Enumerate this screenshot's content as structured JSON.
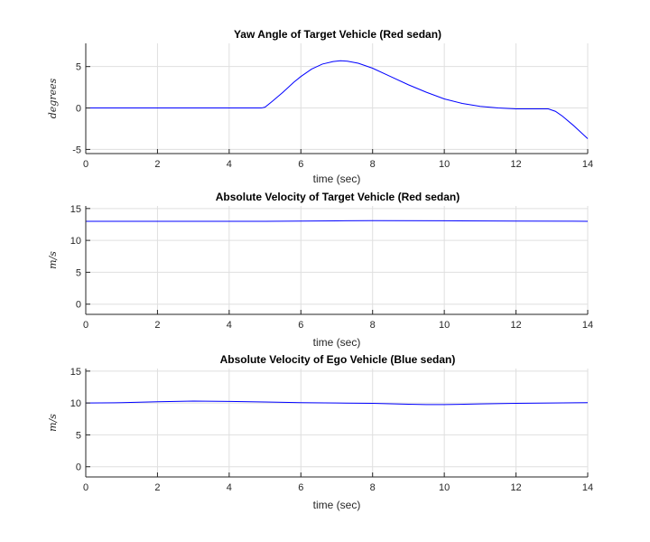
{
  "chart_data": [
    {
      "type": "line",
      "title": "Yaw Angle of Target Vehicle (Red sedan)",
      "xlabel": "time (sec)",
      "ylabel": "degrees",
      "xlim": [
        0,
        14
      ],
      "ylim": [
        -5.5,
        7.8
      ],
      "xticks": [
        0,
        2,
        4,
        6,
        8,
        10,
        12,
        14
      ],
      "yticks": [
        -5,
        0,
        5
      ],
      "grid": true,
      "line_color": "#0000ff",
      "series": [
        {
          "x": [
            0,
            4.5,
            4.9,
            5.0,
            5.2,
            5.5,
            5.8,
            6.0,
            6.3,
            6.6,
            6.9,
            7.1,
            7.3,
            7.6,
            8.0,
            8.5,
            9.0,
            9.5,
            10.0,
            10.5,
            11.0,
            11.5,
            12.0,
            12.5,
            12.9,
            13.1,
            13.3,
            13.6,
            14.0
          ],
          "y": [
            0,
            0,
            0,
            0.1,
            0.8,
            1.9,
            3.1,
            3.8,
            4.7,
            5.3,
            5.6,
            5.7,
            5.65,
            5.4,
            4.8,
            3.8,
            2.8,
            1.9,
            1.1,
            0.55,
            0.2,
            0.0,
            -0.1,
            -0.1,
            -0.1,
            -0.4,
            -1.0,
            -2.1,
            -3.7
          ]
        }
      ]
    },
    {
      "type": "line",
      "title": "Absolute Velocity of Target Vehicle (Red sedan)",
      "xlabel": "time (sec)",
      "ylabel": "m/s",
      "xlim": [
        0,
        14
      ],
      "ylim": [
        -1.6,
        15.4
      ],
      "xticks": [
        0,
        2,
        4,
        6,
        8,
        10,
        12,
        14
      ],
      "yticks": [
        0,
        5,
        10,
        15
      ],
      "grid": true,
      "line_color": "#0000ff",
      "series": [
        {
          "x": [
            0,
            5,
            6,
            7,
            8,
            10,
            12,
            14
          ],
          "y": [
            13.0,
            13.0,
            13.02,
            13.07,
            13.1,
            13.08,
            13.03,
            13.0
          ]
        }
      ]
    },
    {
      "type": "line",
      "title": "Absolute Velocity of Ego Vehicle (Blue sedan)",
      "xlabel": "time (sec)",
      "ylabel": "m/s",
      "xlim": [
        0,
        14
      ],
      "ylim": [
        -1.6,
        15.4
      ],
      "xticks": [
        0,
        2,
        4,
        6,
        8,
        10,
        12,
        14
      ],
      "yticks": [
        0,
        5,
        10,
        15
      ],
      "grid": true,
      "line_color": "#0000ff",
      "series": [
        {
          "x": [
            0,
            1,
            2,
            3,
            4,
            5,
            6,
            7,
            8,
            9,
            9.5,
            10,
            11,
            12,
            13,
            14
          ],
          "y": [
            10.0,
            10.05,
            10.2,
            10.3,
            10.25,
            10.15,
            10.05,
            10.0,
            9.95,
            9.8,
            9.75,
            9.75,
            9.85,
            9.95,
            10.0,
            10.05
          ]
        }
      ]
    }
  ]
}
